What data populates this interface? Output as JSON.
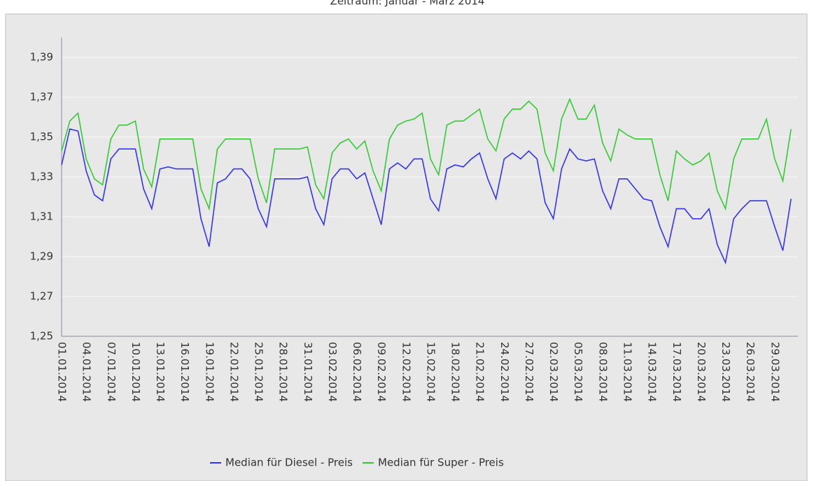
{
  "chart_data": {
    "type": "line",
    "title": "Zeitraum: Januar - März 2014",
    "x": [
      "01.01.2014",
      null,
      null,
      "04.01.2014",
      null,
      null,
      "07.01.2014",
      null,
      null,
      "10.01.2014",
      null,
      null,
      "13.01.2014",
      null,
      null,
      "16.01.2014",
      null,
      null,
      "19.01.2014",
      null,
      null,
      "22.01.2014",
      null,
      null,
      "25.01.2014",
      null,
      null,
      "28.01.2014",
      null,
      null,
      "31.01.2014",
      null,
      null,
      "03.02.2014",
      null,
      null,
      "06.02.2014",
      null,
      null,
      "09.02.2014",
      null,
      null,
      "12.02.2014",
      null,
      null,
      "15.02.2014",
      null,
      null,
      "18.02.2014",
      null,
      null,
      "21.02.2014",
      null,
      null,
      "24.02.2014",
      null,
      null,
      "27.02.2014",
      null,
      null,
      "02.03.2014",
      null,
      null,
      "05.03.2014",
      null,
      null,
      "08.03.2014",
      null,
      null,
      "11.03.2014",
      null,
      null,
      "14.03.2014",
      null,
      null,
      "17.03.2014",
      null,
      null,
      "20.03.2014",
      null,
      null,
      "23.03.2014",
      null,
      null,
      "26.03.2014",
      null,
      null,
      "29.03.2014",
      null,
      null
    ],
    "series": [
      {
        "name": "Median für Diesel - Preis",
        "color": "#3333ff",
        "values": [
          1.336,
          1.354,
          1.353,
          1.333,
          1.321,
          1.318,
          1.339,
          1.344,
          1.344,
          1.344,
          1.324,
          1.314,
          1.334,
          1.335,
          1.334,
          1.334,
          1.334,
          1.309,
          1.295,
          1.327,
          1.329,
          1.334,
          1.334,
          1.329,
          1.314,
          1.305,
          1.329,
          1.329,
          1.329,
          1.329,
          1.33,
          1.314,
          1.306,
          1.329,
          1.334,
          1.334,
          1.329,
          1.332,
          1.319,
          1.306,
          1.334,
          1.337,
          1.334,
          1.339,
          1.339,
          1.319,
          1.313,
          1.334,
          1.336,
          1.335,
          1.339,
          1.342,
          1.329,
          1.319,
          1.339,
          1.342,
          1.339,
          1.343,
          1.339,
          1.317,
          1.309,
          1.334,
          1.344,
          1.339,
          1.338,
          1.339,
          1.323,
          1.314,
          1.329,
          1.329,
          1.324,
          1.319,
          1.318,
          1.305,
          1.295,
          1.314,
          1.314,
          1.309,
          1.309,
          1.314,
          1.296,
          1.287,
          1.309,
          1.314,
          1.318,
          1.318,
          1.318,
          1.305,
          1.293,
          1.319
        ]
      },
      {
        "name": "Median für Super - Preis",
        "color": "#33cc33",
        "values": [
          1.343,
          1.358,
          1.362,
          1.339,
          1.329,
          1.326,
          1.349,
          1.356,
          1.356,
          1.358,
          1.334,
          1.325,
          1.349,
          1.349,
          1.349,
          1.349,
          1.349,
          1.324,
          1.314,
          1.344,
          1.349,
          1.349,
          1.349,
          1.349,
          1.329,
          1.317,
          1.344,
          1.344,
          1.344,
          1.344,
          1.345,
          1.326,
          1.319,
          1.342,
          1.347,
          1.349,
          1.344,
          1.348,
          1.333,
          1.323,
          1.349,
          1.356,
          1.358,
          1.359,
          1.362,
          1.339,
          1.331,
          1.356,
          1.358,
          1.358,
          1.361,
          1.364,
          1.349,
          1.343,
          1.359,
          1.364,
          1.364,
          1.368,
          1.364,
          1.342,
          1.333,
          1.359,
          1.369,
          1.359,
          1.359,
          1.366,
          1.347,
          1.338,
          1.354,
          1.351,
          1.349,
          1.349,
          1.349,
          1.331,
          1.318,
          1.343,
          1.339,
          1.336,
          1.338,
          1.342,
          1.323,
          1.314,
          1.339,
          1.349,
          1.349,
          1.349,
          1.359,
          1.339,
          1.328,
          1.354
        ]
      }
    ],
    "ylim": [
      1.25,
      1.4
    ],
    "yticks": [
      {
        "value": 1.25,
        "label": "1,25"
      },
      {
        "value": 1.27,
        "label": "1,27"
      },
      {
        "value": 1.29,
        "label": "1,29"
      },
      {
        "value": 1.31,
        "label": "1,31"
      },
      {
        "value": 1.33,
        "label": "1,33"
      },
      {
        "value": 1.35,
        "label": "1,35"
      },
      {
        "value": 1.37,
        "label": "1,37"
      },
      {
        "value": 1.39,
        "label": "1,39"
      }
    ],
    "grid": true
  }
}
